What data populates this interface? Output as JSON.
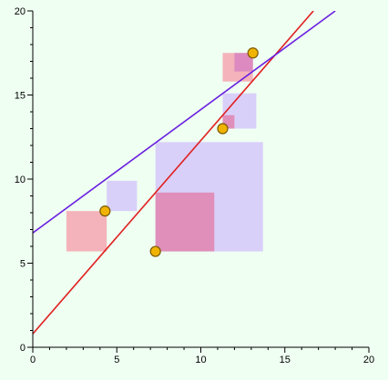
{
  "chart_data": {
    "type": "scatter",
    "title": "",
    "xlabel": "",
    "ylabel": "",
    "xlim": [
      0,
      20
    ],
    "ylim": [
      0,
      20
    ],
    "x_ticks": [
      0,
      5,
      10,
      15,
      20
    ],
    "y_ticks": [
      0,
      5,
      10,
      15,
      20
    ],
    "x_tick_labels": [
      "0",
      "5",
      "10",
      "15",
      "20"
    ],
    "y_tick_labels": [
      "0",
      "5",
      "10",
      "15",
      "20"
    ],
    "grid": false,
    "legend": "none",
    "background_color": "#effff2",
    "rectangles": [
      {
        "x0": 2.0,
        "x1": 4.4,
        "y0": 5.7,
        "y1": 8.1,
        "color": "#f4a6b0",
        "opacity": 0.85
      },
      {
        "x0": 4.4,
        "x1": 6.2,
        "y0": 8.1,
        "y1": 9.9,
        "color": "#c9b0ff",
        "opacity": 0.6
      },
      {
        "x0": 7.3,
        "x1": 13.7,
        "y0": 5.7,
        "y1": 12.2,
        "color": "#c9b0ff",
        "opacity": 0.6
      },
      {
        "x0": 7.3,
        "x1": 10.8,
        "y0": 5.7,
        "y1": 9.2,
        "color": "#e07aa4",
        "opacity": 0.75
      },
      {
        "x0": 11.3,
        "x1": 13.3,
        "y0": 13.0,
        "y1": 15.1,
        "color": "#c9b0ff",
        "opacity": 0.6
      },
      {
        "x0": 11.3,
        "x1": 12.0,
        "y0": 13.0,
        "y1": 13.8,
        "color": "#e07aa4",
        "opacity": 0.75
      },
      {
        "x0": 11.3,
        "x1": 13.1,
        "y0": 15.8,
        "y1": 17.5,
        "color": "#f4a6b0",
        "opacity": 0.85
      },
      {
        "x0": 12.0,
        "x1": 13.1,
        "y0": 16.4,
        "y1": 17.5,
        "color": "#d67fc0",
        "opacity": 0.8
      }
    ],
    "points": [
      {
        "x": 4.3,
        "y": 8.1
      },
      {
        "x": 7.3,
        "y": 5.7
      },
      {
        "x": 11.3,
        "y": 13.0
      },
      {
        "x": 13.1,
        "y": 17.5
      }
    ],
    "point_color": "#f0b400",
    "point_edge_color": "#7a5a00",
    "lines": [
      {
        "color": "#e02020",
        "p1": [
          0,
          0.8
        ],
        "p2": [
          16.7,
          20
        ]
      },
      {
        "color": "#6a1fe0",
        "p1": [
          0,
          6.8
        ],
        "p2": [
          18.0,
          20
        ]
      }
    ]
  }
}
